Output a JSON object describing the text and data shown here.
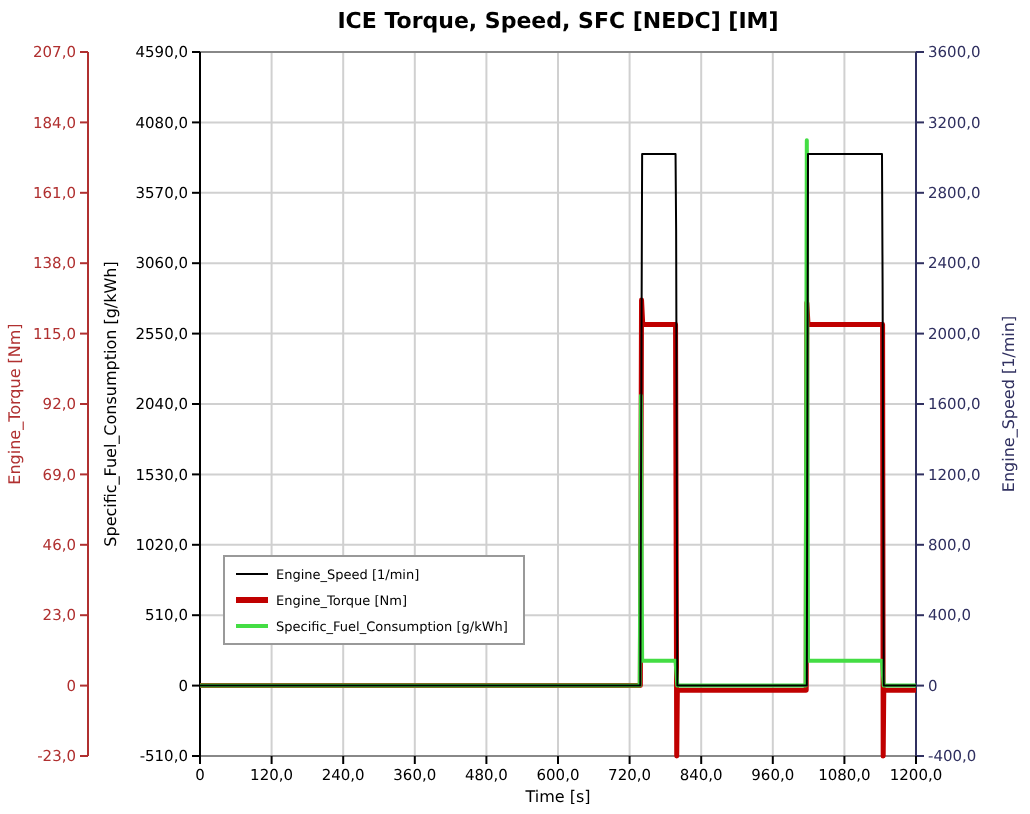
{
  "chart_data": {
    "type": "line",
    "title": "ICE Torque, Speed, SFC [NEDC] [IM]",
    "xlabel": "Time [s]",
    "ylabel": "Specific_Fuel_Consumption [g/kWh]",
    "y2label": "Engine_Speed [1/min]",
    "y3label": "Engine_Torque [Nm]",
    "xlim": [
      0,
      1200
    ],
    "xticks": [
      0,
      {
        "value": 120,
        "label": "120,0"
      },
      {
        "value": 240,
        "label": "240,0"
      },
      {
        "value": 360,
        "label": "360,0"
      },
      {
        "value": 480,
        "label": "480,0"
      },
      {
        "value": 600,
        "label": "600,0"
      },
      {
        "value": 720,
        "label": "720,0"
      },
      {
        "value": 840,
        "label": "840,0"
      },
      {
        "value": 960,
        "label": "960,0"
      },
      {
        "value": 1080,
        "label": "1080,0"
      },
      {
        "value": 1200,
        "label": "1200,0"
      }
    ],
    "ylim": [
      -510,
      4590
    ],
    "yticks": [
      {
        "value": -510,
        "label": "-510,0"
      },
      0,
      {
        "value": 510,
        "label": "510,0"
      },
      {
        "value": 1020,
        "label": "1020,0"
      },
      {
        "value": 1530,
        "label": "1530,0"
      },
      {
        "value": 2040,
        "label": "2040,0"
      },
      {
        "value": 2550,
        "label": "2550,0"
      },
      {
        "value": 3060,
        "label": "3060,0"
      },
      {
        "value": 3570,
        "label": "3570,0"
      },
      {
        "value": 4080,
        "label": "4080,0"
      },
      {
        "value": 4590,
        "label": "4590,0"
      }
    ],
    "y2lim": [
      -400,
      3600
    ],
    "y2ticks": [
      {
        "value": -400,
        "label": "-400,0"
      },
      0,
      {
        "value": 400,
        "label": "400,0"
      },
      {
        "value": 800,
        "label": "800,0"
      },
      {
        "value": 1200,
        "label": "1200,0"
      },
      {
        "value": 1600,
        "label": "1600,0"
      },
      {
        "value": 2000,
        "label": "2000,0"
      },
      {
        "value": 2400,
        "label": "2400,0"
      },
      {
        "value": 2800,
        "label": "2800,0"
      },
      {
        "value": 3200,
        "label": "3200,0"
      },
      {
        "value": 3600,
        "label": "3600,0"
      }
    ],
    "y3lim": [
      -23,
      207
    ],
    "y3ticks": [
      {
        "value": -23,
        "label": "-23,0"
      },
      0,
      {
        "value": 23,
        "label": "23,0"
      },
      {
        "value": 46,
        "label": "46,0"
      },
      {
        "value": 69,
        "label": "69,0"
      },
      {
        "value": 92,
        "label": "92,0"
      },
      {
        "value": 115,
        "label": "115,0"
      },
      {
        "value": 138,
        "label": "138,0"
      },
      {
        "value": 161,
        "label": "161,0"
      },
      {
        "value": 184,
        "label": "184,0"
      },
      {
        "value": 207,
        "label": "207,0"
      }
    ],
    "grid": true,
    "legend": "bottom left",
    "series": [
      {
        "name": "Engine_Speed [1/min]",
        "color": "#000000",
        "axis": "y2",
        "x": [
          0,
          738,
          741,
          797,
          798,
          800,
          1017,
          1019,
          1143,
          1144,
          1146,
          1200
        ],
        "values": [
          0,
          0,
          3020,
          3020,
          2580,
          0,
          0,
          3020,
          3020,
          2280,
          0,
          0
        ]
      },
      {
        "name": "Engine_Torque [Nm]",
        "color": "#c00000",
        "axis": "y3",
        "x": [
          0,
          738,
          740,
          742,
          797,
          799,
          800,
          1016,
          1017,
          1019,
          1144,
          1145,
          1146,
          1200
        ],
        "values": [
          0,
          0,
          126,
          118,
          118,
          -23,
          -1.5,
          -1.5,
          125,
          118,
          118,
          -23,
          -1.5,
          -1.5
        ]
      },
      {
        "name": "Specific_Fuel_Consumption [g/kWh]",
        "color": "#44dd44",
        "x": [
          0,
          737,
          739,
          741,
          797,
          800,
          1015,
          1017,
          1019,
          1143,
          1146,
          1200
        ],
        "values": [
          0,
          0,
          2100,
          180,
          180,
          0,
          0,
          3950,
          180,
          180,
          0,
          0
        ]
      }
    ]
  }
}
